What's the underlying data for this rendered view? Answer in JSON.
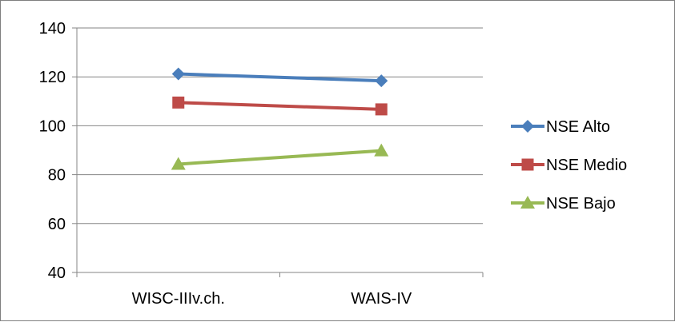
{
  "chart_data": {
    "type": "line",
    "categories": [
      "WISC-IIIv.ch.",
      "WAIS-IV"
    ],
    "series": [
      {
        "name": "NSE Alto",
        "values": [
          121.2,
          118.4
        ],
        "color": "#4a7ebb",
        "marker": "diamond"
      },
      {
        "name": "NSE Medio",
        "values": [
          109.5,
          106.7
        ],
        "color": "#be4b48",
        "marker": "square"
      },
      {
        "name": "NSE Bajo",
        "values": [
          84.3,
          89.8
        ],
        "color": "#98b954",
        "marker": "triangle"
      }
    ],
    "ylim": [
      40,
      140
    ],
    "yticks": [
      "40",
      "60",
      "80",
      "100",
      "120",
      "140"
    ],
    "grid": true,
    "legend": "right"
  }
}
